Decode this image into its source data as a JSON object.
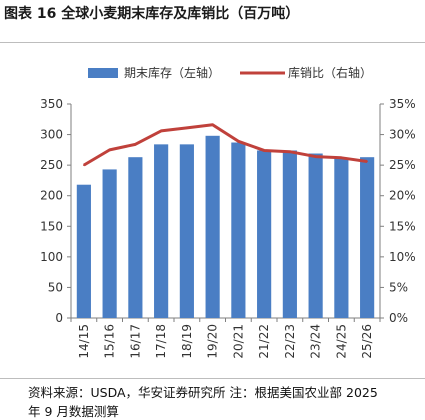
{
  "figure_title": "图表 16 全球小麦期末库存及库销比（百万吨）",
  "source_line1": "资料来源：USDA，华安证券研究所 注：根据美国农业部 2025",
  "source_line2": "年 9 月数据测算",
  "colors": {
    "bar": "#4a7ec4",
    "line": "#c0413b",
    "axis": "#7f7f7f",
    "text": "#333333"
  },
  "chart_data": {
    "type": "bar",
    "categories": [
      "14/15",
      "15/16",
      "16/17",
      "17/18",
      "18/19",
      "19/20",
      "20/21",
      "21/22",
      "22/23",
      "23/24",
      "24/25",
      "25/26"
    ],
    "series": [
      {
        "name": "期末库存（左轴）",
        "type": "bar",
        "axis": "left",
        "values": [
          218,
          243,
          263,
          284,
          284,
          298,
          287,
          274,
          274,
          269,
          262,
          263
        ]
      },
      {
        "name": "库销比（右轴）",
        "type": "line",
        "axis": "right",
        "values": [
          25.0,
          27.5,
          28.4,
          30.6,
          31.1,
          31.6,
          28.9,
          27.4,
          27.2,
          26.4,
          26.2,
          25.6
        ]
      }
    ],
    "left_axis": {
      "min": 0,
      "max": 350,
      "ticks": [
        "0",
        "50",
        "100",
        "150",
        "200",
        "250",
        "300",
        "350"
      ]
    },
    "right_axis": {
      "min": 0,
      "max": 35,
      "ticks": [
        "0%",
        "5%",
        "10%",
        "15%",
        "20%",
        "25%",
        "30%",
        "35%"
      ]
    },
    "legend_position": "top",
    "grid": false
  }
}
